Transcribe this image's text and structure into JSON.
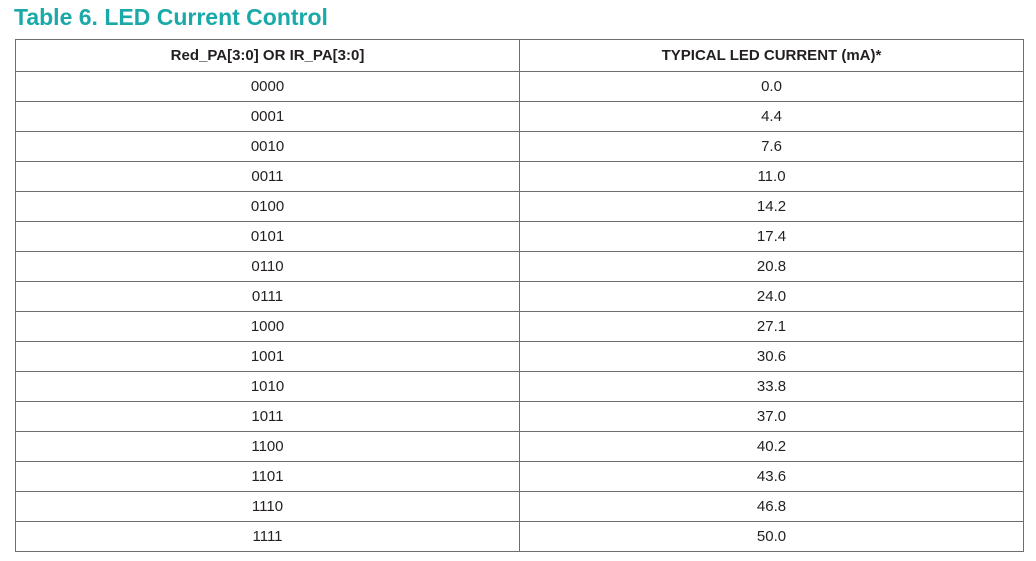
{
  "title": "Table 6. LED Current Control",
  "table": {
    "headers": [
      "Red_PA[3:0] OR IR_PA[3:0]",
      "TYPICAL LED CURRENT (mA)*"
    ],
    "rows": [
      [
        "0000",
        "0.0"
      ],
      [
        "0001",
        "4.4"
      ],
      [
        "0010",
        "7.6"
      ],
      [
        "0011",
        "11.0"
      ],
      [
        "0100",
        "14.2"
      ],
      [
        "0101",
        "17.4"
      ],
      [
        "0110",
        "20.8"
      ],
      [
        "0111",
        "24.0"
      ],
      [
        "1000",
        "27.1"
      ],
      [
        "1001",
        "30.6"
      ],
      [
        "1010",
        "33.8"
      ],
      [
        "1011",
        "37.0"
      ],
      [
        "1100",
        "40.2"
      ],
      [
        "1101",
        "43.6"
      ],
      [
        "1110",
        "46.8"
      ],
      [
        "1111",
        "50.0"
      ]
    ]
  },
  "colors": {
    "title": "#1aa9a9",
    "text": "#231f20",
    "border": "#6d6e71"
  }
}
